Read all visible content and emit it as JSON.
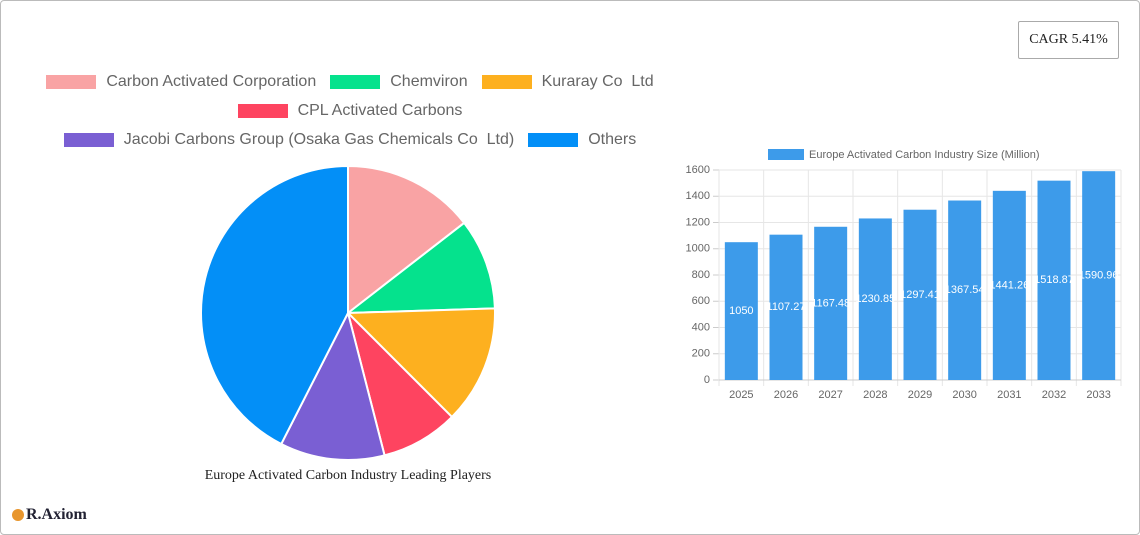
{
  "cagr": "CAGR 5.41%",
  "brand": "R.Axiom",
  "chart_data": [
    {
      "type": "pie",
      "title": "Europe Activated Carbon Industry Leading Players",
      "categories": [
        "Carbon Activated Corporation",
        "Chemviron",
        "Kuraray Co  Ltd",
        "CPL Activated Carbons",
        "Jacobi Carbons Group (Osaka Gas Chemicals Co  Ltd)",
        "Others"
      ],
      "values": [
        14.5,
        10,
        13,
        8.5,
        11.5,
        42.5
      ],
      "colors": [
        "#f9a3a4",
        "#05e28d",
        "#fdb01f",
        "#fe4460",
        "#7a5fd3",
        "#038ff7"
      ]
    },
    {
      "type": "bar",
      "categories": [
        "2025",
        "2026",
        "2027",
        "2028",
        "2029",
        "2030",
        "2031",
        "2032",
        "2033"
      ],
      "series": [
        {
          "name": "Europe Activated Carbon Industry Size (Million)",
          "color": "#3d9bea",
          "values": [
            1050,
            1107.27,
            1167.48,
            1230.85,
            1297.41,
            1367.54,
            1441.26,
            1518.87,
            1590.96
          ]
        }
      ],
      "ylim": [
        0,
        1600
      ],
      "yticks": [
        0,
        200,
        400,
        600,
        800,
        1000,
        1200,
        1400,
        1600
      ],
      "grid": true
    }
  ]
}
